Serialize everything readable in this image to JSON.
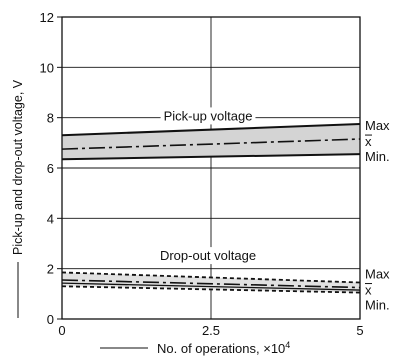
{
  "chart_data": {
    "type": "line",
    "xlabel": "No. of operations, ×10",
    "xlabel_exp": "4",
    "ylabel": "Pick-up and drop-out voltage, V",
    "xlim": [
      0,
      5
    ],
    "ylim": [
      0,
      12
    ],
    "xticks": [
      {
        "value": 0,
        "label": "0"
      },
      {
        "value": 2.5,
        "label": "2.5"
      },
      {
        "value": 5,
        "label": "5"
      }
    ],
    "yticks": [
      {
        "value": 0,
        "label": "0"
      },
      {
        "value": 2,
        "label": "2"
      },
      {
        "value": 4,
        "label": "4"
      },
      {
        "value": 6,
        "label": "6"
      },
      {
        "value": 8,
        "label": "8"
      },
      {
        "value": 10,
        "label": "10"
      },
      {
        "value": 12,
        "label": "12"
      }
    ],
    "grid": {
      "x": [
        2.5
      ],
      "y": [
        2,
        4,
        6,
        8,
        10
      ]
    },
    "bands": [
      {
        "name": "Pick-up voltage",
        "x": [
          0,
          5
        ],
        "max": [
          7.3,
          7.75
        ],
        "mean": [
          6.75,
          7.15
        ],
        "min": [
          6.35,
          6.55
        ],
        "fill": "#d4d4d4",
        "label_pos": [
          2.45,
          8.05
        ]
      },
      {
        "name": "Drop-out voltage",
        "x": [
          0,
          5
        ],
        "max": [
          1.85,
          1.45
        ],
        "mean": [
          1.55,
          1.25
        ],
        "min": [
          1.3,
          1.05
        ],
        "fill": "#e1e1e1",
        "label_pos": [
          2.45,
          2.5
        ]
      }
    ],
    "band_labels": {
      "max": "Max",
      "mean": "x",
      "min": "Min."
    }
  }
}
